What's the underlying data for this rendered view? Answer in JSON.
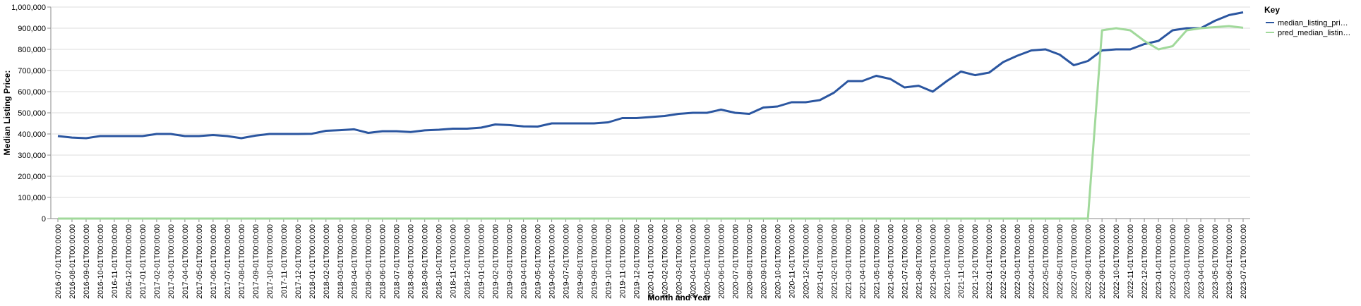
{
  "chart_data": {
    "type": "line",
    "x_label": "Month and Year",
    "y_label": "Median Listing Price:",
    "legend_title": "Key",
    "legend_position": "right",
    "grid": true,
    "categories": [
      "2016-07-01T00:00:00",
      "2016-08-01T00:00:00",
      "2016-09-01T00:00:00",
      "2016-10-01T00:00:00",
      "2016-11-01T00:00:00",
      "2016-12-01T00:00:00",
      "2017-01-01T00:00:00",
      "2017-02-01T00:00:00",
      "2017-03-01T00:00:00",
      "2017-04-01T00:00:00",
      "2017-05-01T00:00:00",
      "2017-06-01T00:00:00",
      "2017-07-01T00:00:00",
      "2017-08-01T00:00:00",
      "2017-09-01T00:00:00",
      "2017-10-01T00:00:00",
      "2017-11-01T00:00:00",
      "2017-12-01T00:00:00",
      "2018-01-01T00:00:00",
      "2018-02-01T00:00:00",
      "2018-03-01T00:00:00",
      "2018-04-01T00:00:00",
      "2018-05-01T00:00:00",
      "2018-06-01T00:00:00",
      "2018-07-01T00:00:00",
      "2018-08-01T00:00:00",
      "2018-09-01T00:00:00",
      "2018-10-01T00:00:00",
      "2018-11-01T00:00:00",
      "2018-12-01T00:00:00",
      "2019-01-01T00:00:00",
      "2019-02-01T00:00:00",
      "2019-03-01T00:00:00",
      "2019-04-01T00:00:00",
      "2019-05-01T00:00:00",
      "2019-06-01T00:00:00",
      "2019-07-01T00:00:00",
      "2019-08-01T00:00:00",
      "2019-09-01T00:00:00",
      "2019-10-01T00:00:00",
      "2019-11-01T00:00:00",
      "2019-12-01T00:00:00",
      "2020-01-01T00:00:00",
      "2020-02-01T00:00:00",
      "2020-03-01T00:00:00",
      "2020-04-01T00:00:00",
      "2020-05-01T00:00:00",
      "2020-06-01T00:00:00",
      "2020-07-01T00:00:00",
      "2020-08-01T00:00:00",
      "2020-09-01T00:00:00",
      "2020-10-01T00:00:00",
      "2020-11-01T00:00:00",
      "2020-12-01T00:00:00",
      "2021-01-01T00:00:00",
      "2021-02-01T00:00:00",
      "2021-03-01T00:00:00",
      "2021-04-01T00:00:00",
      "2021-05-01T00:00:00",
      "2021-06-01T00:00:00",
      "2021-07-01T00:00:00",
      "2021-08-01T00:00:00",
      "2021-09-01T00:00:00",
      "2021-10-01T00:00:00",
      "2021-11-01T00:00:00",
      "2021-12-01T00:00:00",
      "2022-01-01T00:00:00",
      "2022-02-01T00:00:00",
      "2022-03-01T00:00:00",
      "2022-04-01T00:00:00",
      "2022-05-01T00:00:00",
      "2022-06-01T00:00:00",
      "2022-07-01T00:00:00",
      "2022-08-01T00:00:00",
      "2022-09-01T00:00:00",
      "2022-10-01T00:00:00",
      "2022-11-01T00:00:00",
      "2022-12-01T00:00:00",
      "2023-01-01T00:00:00",
      "2023-02-01T00:00:00",
      "2023-03-01T00:00:00",
      "2023-04-01T00:00:00",
      "2023-05-01T00:00:00",
      "2023-06-01T00:00:00",
      "2023-07-01T00:00:00"
    ],
    "series": [
      {
        "name": "median_listing_pri…",
        "color": "#2b56a0",
        "values": [
          390000,
          383000,
          380000,
          390000,
          390000,
          390000,
          390000,
          400000,
          400000,
          390000,
          390000,
          395000,
          390000,
          380000,
          392000,
          400000,
          400000,
          400000,
          401000,
          415000,
          418000,
          422000,
          405000,
          413000,
          413000,
          409000,
          417000,
          420000,
          425000,
          425000,
          430000,
          445000,
          442000,
          436000,
          435000,
          450000,
          450000,
          450000,
          450000,
          455000,
          475000,
          475000,
          480000,
          485000,
          495000,
          500000,
          500000,
          515000,
          500000,
          495000,
          525000,
          530000,
          550000,
          550000,
          560000,
          595000,
          650000,
          650000,
          675000,
          660000,
          620000,
          628000,
          600000,
          650000,
          695000,
          678000,
          690000,
          740000,
          770000,
          795000,
          800000,
          775000,
          725000,
          745000,
          795000,
          800000,
          800000,
          825000,
          840000,
          890000,
          900000,
          900000,
          935000,
          962000,
          975000
        ]
      },
      {
        "name": "pred_median_listin…",
        "color": "#a1d99b",
        "values": [
          0,
          0,
          0,
          0,
          0,
          0,
          0,
          0,
          0,
          0,
          0,
          0,
          0,
          0,
          0,
          0,
          0,
          0,
          0,
          0,
          0,
          0,
          0,
          0,
          0,
          0,
          0,
          0,
          0,
          0,
          0,
          0,
          0,
          0,
          0,
          0,
          0,
          0,
          0,
          0,
          0,
          0,
          0,
          0,
          0,
          0,
          0,
          0,
          0,
          0,
          0,
          0,
          0,
          0,
          0,
          0,
          0,
          0,
          0,
          0,
          0,
          0,
          0,
          0,
          0,
          0,
          0,
          0,
          0,
          0,
          0,
          0,
          0,
          0,
          890000,
          900000,
          890000,
          840000,
          800000,
          815000,
          890000,
          900000,
          905000,
          910000,
          902000
        ]
      }
    ],
    "ylim": [
      0,
      1000000
    ],
    "yticks": [
      0,
      {
        "value": 100000,
        "label": "100,000"
      },
      {
        "value": 200000,
        "label": "200,000"
      },
      {
        "value": 300000,
        "label": "300,000"
      },
      {
        "value": 400000,
        "label": "400,000"
      },
      {
        "value": 500000,
        "label": "500,000"
      },
      {
        "value": 600000,
        "label": "600,000"
      },
      {
        "value": 700000,
        "label": "700,000"
      },
      {
        "value": 800000,
        "label": "800,000"
      },
      {
        "value": 900000,
        "label": "900,000"
      },
      {
        "value": 1000000,
        "label": "1,000,000"
      }
    ]
  }
}
